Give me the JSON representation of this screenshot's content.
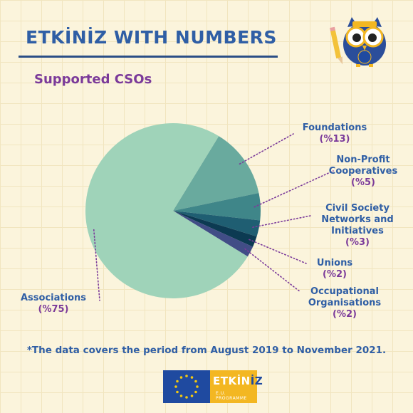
{
  "header": {
    "title": "ETKİNİZ WITH NUMBERS",
    "subtitle": "Supported CSOs"
  },
  "chart_data": {
    "type": "pie",
    "title": "Supported CSOs",
    "slices": [
      {
        "name": "Associations",
        "label": "(%75)",
        "value": 75,
        "color": "#9fd3b9"
      },
      {
        "name": "Foundations",
        "label": "(%13)",
        "value": 13,
        "color": "#69aa9e"
      },
      {
        "name": "Non-Profit Cooperatives",
        "label": "(%5)",
        "value": 5,
        "color": "#3f8689"
      },
      {
        "name": "Civil Society Networks and Initiatives",
        "label": "(%3)",
        "value": 3,
        "color": "#1f5e72"
      },
      {
        "name": "Unions",
        "label": "(%2)",
        "value": 2,
        "color": "#0c3a52"
      },
      {
        "name": "Occupational Organisations",
        "label": "(%2)",
        "value": 2,
        "color": "#414d86"
      }
    ],
    "note": "*The data covers the period from August 2019 to November 2021."
  },
  "footer": {
    "logo_word_main": "ETKİN",
    "logo_word_accent": "İZ",
    "logo_sub": "E.U. PROGRAMME"
  },
  "colors": {
    "title": "#2f5ea5",
    "subtitle": "#7b3a9a",
    "background": "#fbf4dc",
    "leader_line": "#7b3a9a"
  },
  "icons": [
    "owl-mascot-icon",
    "pencil-icon",
    "eu-flag-icon"
  ]
}
